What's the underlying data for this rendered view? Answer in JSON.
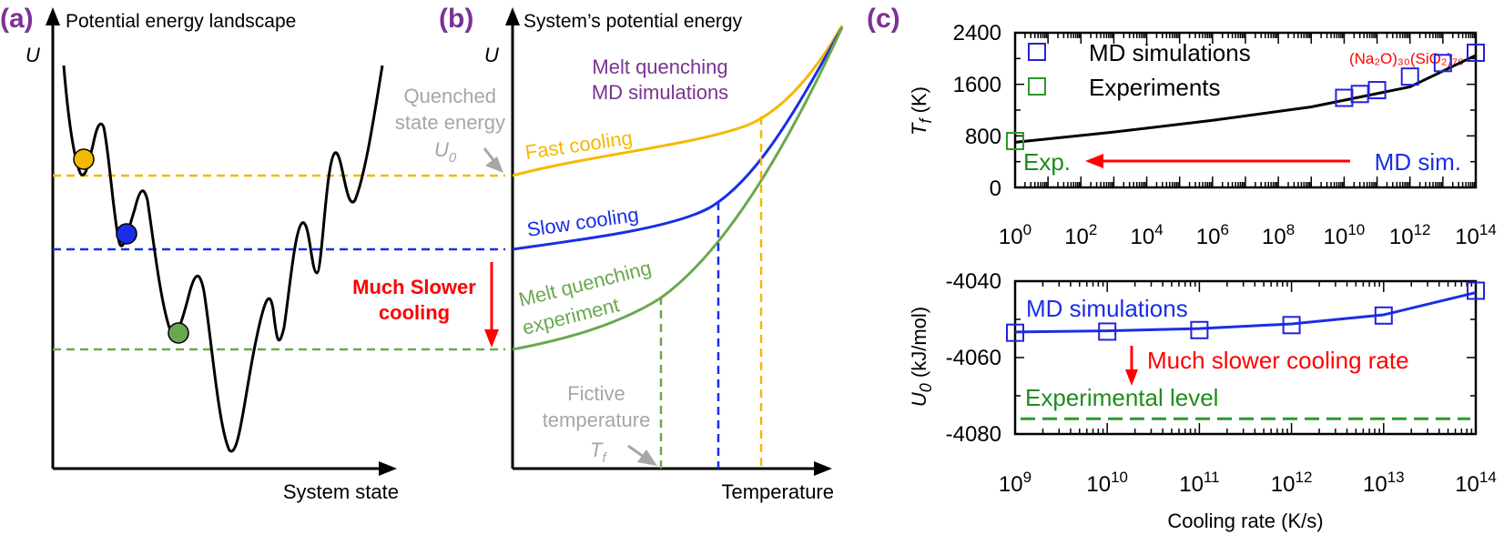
{
  "colors": {
    "panel_letter": "#7b3294",
    "orange": "#f5b800",
    "blue": "#1a2ee6",
    "green": "#6aa84f",
    "dark_green": "#1e8c1e",
    "red": "#ff0000",
    "purple": "#7b3294",
    "gray": "#a6a6a6",
    "black": "#000000",
    "marker_blue": "#2222dd",
    "marker_green": "#2a9a2a"
  },
  "panel_a": {
    "letter": "(a)",
    "title": "Potential energy landscape",
    "y_symbol": "U",
    "x_label": "System state",
    "arrow_label_line1": "Much Slower",
    "arrow_label_line2": "cooling"
  },
  "panel_b": {
    "letter": "(b)",
    "title": "System’s potential energy",
    "y_symbol": "U",
    "x_label": "Temperature",
    "md_label_line1": "Melt quenching",
    "md_label_line2": "MD simulations",
    "quenched_line1": "Quenched",
    "quenched_line2": "state energy",
    "u0_symbol": "U",
    "u0_sub": "0",
    "fast_label": "Fast cooling",
    "slow_label": "Slow cooling",
    "exp_label_line1": "Melt quenching",
    "exp_label_line2": "experiment",
    "fictive_line1": "Fictive",
    "fictive_line2": "temperature",
    "tf_symbol": "T",
    "tf_sub": "f"
  },
  "panel_c": {
    "letter": "(c)",
    "composition": "(Na₂O)₃₀(SiO₂)₇₀",
    "top": {
      "ylabel": "T",
      "ylabel_sub": "f",
      "ylabel_unit": " (K)",
      "yticks": [
        "2400",
        "1600",
        "800",
        "0"
      ],
      "xticks": [
        {
          "base": "10",
          "exp": "0"
        },
        {
          "base": "10",
          "exp": "2"
        },
        {
          "base": "10",
          "exp": "4"
        },
        {
          "base": "10",
          "exp": "6"
        },
        {
          "base": "10",
          "exp": "8"
        },
        {
          "base": "10",
          "exp": "10"
        },
        {
          "base": "10",
          "exp": "12"
        },
        {
          "base": "10",
          "exp": "14"
        }
      ],
      "legend_md": "MD simulations",
      "legend_exp": "Experiments",
      "exp_label": "Exp.",
      "md_label": "MD sim."
    },
    "bottom": {
      "ylabel": "U",
      "ylabel_sub": "0",
      "ylabel_unit": " (kJ/mol)",
      "yticks": [
        "-4040",
        "-4060",
        "-4080"
      ],
      "xticks": [
        {
          "base": "10",
          "exp": "9"
        },
        {
          "base": "10",
          "exp": "10"
        },
        {
          "base": "10",
          "exp": "11"
        },
        {
          "base": "10",
          "exp": "12"
        },
        {
          "base": "10",
          "exp": "13"
        },
        {
          "base": "10",
          "exp": "14"
        }
      ],
      "xlabel": "Cooling rate (K/s)",
      "md_label": "MD simulations",
      "arrow_label": "Much slower cooling rate",
      "exp_level_label": "Experimental level"
    }
  },
  "chart_data": [
    {
      "type": "scatter",
      "x_scale": "log",
      "xlim": [
        1,
        100000000000000
      ],
      "ylim": [
        0,
        2400
      ],
      "ylabel": "Tf (K)",
      "series": [
        {
          "name": "MD simulations",
          "x": [
            10000000000,
            30000000000,
            100000000000,
            1000000000000,
            10000000000000,
            100000000000000
          ],
          "y": [
            1390,
            1450,
            1510,
            1720,
            1930,
            2090
          ]
        },
        {
          "name": "Experiments",
          "x": [
            1
          ],
          "y": [
            720
          ]
        }
      ],
      "fit": {
        "x": [
          1,
          1000,
          1000000,
          1000000000,
          1000000000000,
          100000000000000
        ],
        "y": [
          700,
          860,
          1040,
          1250,
          1560,
          2050
        ]
      }
    },
    {
      "type": "scatter",
      "x_scale": "log",
      "xlim": [
        1000000000,
        100000000000000
      ],
      "ylim": [
        -4080,
        -4040
      ],
      "xlabel": "Cooling rate (K/s)",
      "ylabel": "U0 (kJ/mol)",
      "series": [
        {
          "name": "MD simulations",
          "x": [
            1000000000,
            10000000000,
            100000000000,
            1000000000000,
            10000000000000,
            100000000000000
          ],
          "y": [
            -4053.5,
            -4053.2,
            -4052.8,
            -4051.5,
            -4049,
            -4042.5
          ]
        }
      ],
      "fit": {
        "x": [
          1000000000,
          10000000000,
          100000000000,
          1000000000000,
          10000000000000,
          100000000000000
        ],
        "y": [
          -4053.3,
          -4053.0,
          -4052.4,
          -4051.2,
          -4048.8,
          -4043
        ]
      },
      "reference": {
        "name": "Experimental level",
        "y": -4076
      }
    }
  ]
}
